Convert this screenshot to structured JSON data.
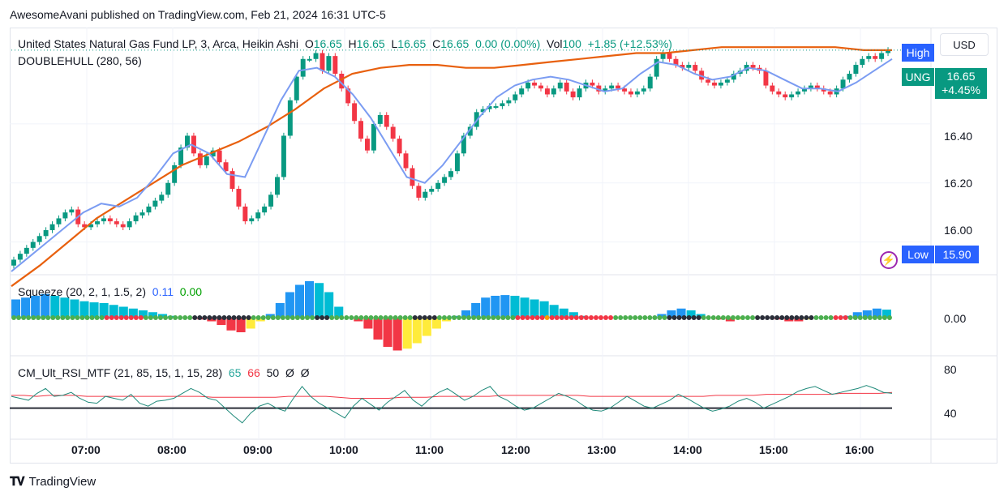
{
  "published_line": "AwesomeAvani published on TradingView.com, Feb 21, 2024 16:31 UTC-5",
  "legend": {
    "symbol": "United States Natural Gas Fund LP, 3, Arca, Heikin Ashi",
    "o_label": "O",
    "o_value": "16.65",
    "h_label": "H",
    "h_value": "16.65",
    "l_label": "L",
    "l_value": "16.65",
    "c_label": "C",
    "c_value": "16.65",
    "change": "0.00 (0.00%)",
    "vol_label": "Vol",
    "vol_value": "100",
    "day_change": "+1.85 (+12.53%)",
    "indicator": "DOUBLEHULL (280, 56)"
  },
  "currency_button": "USD",
  "price_tags": {
    "high_label": "High",
    "ticker": "UNG",
    "last_price": "16.65",
    "last_change": "+4.45%",
    "low_label": "Low",
    "low_price": "15.90"
  },
  "squeeze_legend": {
    "name": "Squeeze (20, 2, 1, 1.5, 2)",
    "v1": "0.11",
    "v2": "0.00",
    "axis_label": "0.00"
  },
  "rsi_legend": {
    "name": "CM_Ult_RSI_MTF (21, 85, 15, 1, 15, 28)",
    "v1": "65",
    "v2": "66",
    "v3": "50",
    "v4": "Ø",
    "v5": "Ø",
    "axis_top": "80",
    "axis_bottom": "40"
  },
  "price_axis": [
    "16.40",
    "16.20",
    "16.00"
  ],
  "time_axis": [
    "07:00",
    "08:00",
    "09:00",
    "10:00",
    "11:00",
    "12:00",
    "13:00",
    "14:00",
    "15:00",
    "16:00"
  ],
  "footer_brand": "TradingView",
  "colors": {
    "up": "#089981",
    "down": "#f23645",
    "hull_fast": "#7b9cf2",
    "hull_slow": "#e8600e",
    "tag_blue": "#2962ff",
    "tag_green": "#089981",
    "squeeze_blue": "#2196f3",
    "squeeze_cyan": "#00bcd4",
    "squeeze_red": "#f23645",
    "squeeze_yellow": "#ffeb3b",
    "rsi_line": "#1f8a7a",
    "rsi_signal": "#f23645"
  },
  "chart_data": {
    "type": "candlestick",
    "title": "United States Natural Gas Fund LP, 3, Arca, Heikin Ashi",
    "x_range": [
      "06:30",
      "16:20"
    ],
    "ylim": [
      15.9,
      16.71
    ],
    "price_ticks": [
      16.0,
      16.2,
      16.4
    ],
    "close_series": [
      15.94,
      15.96,
      15.98,
      16.0,
      16.02,
      16.04,
      16.06,
      16.08,
      16.1,
      16.11,
      16.06,
      16.05,
      16.06,
      16.07,
      16.08,
      16.07,
      16.06,
      16.05,
      16.07,
      16.09,
      16.1,
      16.12,
      16.14,
      16.16,
      16.2,
      16.26,
      16.32,
      16.36,
      16.3,
      16.26,
      16.29,
      16.31,
      16.27,
      16.24,
      16.18,
      16.12,
      16.07,
      16.08,
      16.1,
      16.12,
      16.16,
      16.22,
      16.36,
      16.48,
      16.56,
      16.62,
      16.62,
      16.64,
      16.58,
      16.63,
      16.57,
      16.52,
      16.47,
      16.41,
      16.35,
      16.31,
      16.4,
      16.43,
      16.39,
      16.35,
      16.3,
      16.25,
      16.19,
      16.15,
      16.17,
      16.18,
      16.2,
      16.22,
      16.24,
      16.3,
      16.36,
      16.39,
      16.44,
      16.45,
      16.46,
      16.46,
      16.47,
      16.48,
      16.5,
      16.52,
      16.54,
      16.53,
      16.52,
      16.5,
      16.52,
      16.54,
      16.51,
      16.49,
      16.52,
      16.54,
      16.53,
      16.51,
      16.52,
      16.53,
      16.52,
      16.51,
      16.5,
      16.51,
      16.52,
      16.56,
      16.62,
      16.64,
      16.62,
      16.6,
      16.59,
      16.6,
      16.58,
      16.55,
      16.54,
      16.53,
      16.54,
      16.55,
      16.57,
      16.58,
      16.6,
      16.59,
      16.58,
      16.53,
      16.51,
      16.5,
      16.49,
      16.5,
      16.51,
      16.52,
      16.53,
      16.52,
      16.51,
      16.5,
      16.52,
      16.55,
      16.57,
      16.6,
      16.62,
      16.63,
      16.62,
      16.64,
      16.65
    ],
    "hull_fast_values": [
      15.9,
      15.95,
      16.0,
      16.05,
      16.1,
      16.13,
      16.12,
      16.15,
      16.22,
      16.3,
      16.33,
      16.3,
      16.23,
      16.22,
      16.35,
      16.48,
      16.58,
      16.59,
      16.56,
      16.5,
      16.42,
      16.32,
      16.22,
      16.2,
      16.26,
      16.34,
      16.42,
      16.49,
      16.53,
      16.55,
      16.56,
      16.55,
      16.53,
      16.51,
      16.52,
      16.57,
      16.61,
      16.6,
      16.57,
      16.55,
      16.56,
      16.59,
      16.58,
      16.55,
      16.52,
      16.52,
      16.51,
      16.54,
      16.58,
      16.62
    ],
    "hull_slow_values": [
      15.85,
      15.92,
      16.0,
      16.08,
      16.14,
      16.2,
      16.26,
      16.3,
      16.34,
      16.39,
      16.45,
      16.52,
      16.57,
      16.59,
      16.6,
      16.6,
      16.59,
      16.59,
      16.6,
      16.61,
      16.62,
      16.63,
      16.64,
      16.64,
      16.65,
      16.66,
      16.66,
      16.66,
      16.66,
      16.66,
      16.65,
      16.65
    ],
    "squeeze": {
      "axis": "0.00",
      "momentum": [
        0.5,
        0.55,
        0.6,
        0.65,
        0.6,
        0.55,
        0.5,
        0.45,
        0.42,
        0.4,
        0.35,
        0.3,
        0.25,
        0.2,
        0.15,
        0.1,
        0.05,
        0.0,
        -0.02,
        -0.05,
        -0.1,
        -0.2,
        -0.35,
        -0.4,
        -0.3,
        -0.1,
        0.1,
        0.4,
        0.7,
        0.9,
        1.0,
        0.95,
        0.7,
        0.3,
        0.0,
        -0.1,
        -0.3,
        -0.6,
        -0.8,
        -0.9,
        -0.85,
        -0.7,
        -0.5,
        -0.3,
        -0.1,
        0.05,
        0.2,
        0.4,
        0.55,
        0.6,
        0.62,
        0.6,
        0.55,
        0.5,
        0.45,
        0.35,
        0.25,
        0.15,
        0.05,
        0.0,
        0.0,
        0.0,
        0.0,
        0.0,
        0.0,
        0.0,
        0.1,
        0.2,
        0.25,
        0.2,
        0.1,
        0.0,
        -0.05,
        -0.1,
        -0.05,
        0.0,
        0.0,
        0.0,
        -0.05,
        -0.1,
        -0.1,
        -0.05,
        0.0,
        0.0,
        0.0,
        0.05,
        0.15,
        0.2,
        0.25,
        0.22
      ]
    },
    "rsi": {
      "ylim": [
        20,
        100
      ],
      "ticks": [
        80,
        40
      ],
      "midline": 50,
      "values": [
        62,
        60,
        58,
        65,
        70,
        62,
        63,
        66,
        60,
        56,
        55,
        62,
        60,
        58,
        64,
        55,
        52,
        57,
        58,
        60,
        65,
        70,
        66,
        60,
        58,
        50,
        42,
        35,
        45,
        52,
        55,
        50,
        47,
        60,
        72,
        62,
        55,
        50,
        45,
        40,
        52,
        60,
        54,
        48,
        56,
        62,
        68,
        58,
        52,
        60,
        66,
        70,
        64,
        58,
        62,
        68,
        72,
        62,
        58,
        52,
        48,
        50,
        55,
        60,
        65,
        62,
        58,
        52,
        48,
        47,
        50,
        56,
        62,
        57,
        52,
        50,
        54,
        58,
        64,
        60,
        55,
        50,
        47,
        49,
        52,
        57,
        60,
        56,
        50,
        54,
        58,
        62,
        67,
        70,
        72,
        68,
        64,
        66,
        68,
        70,
        73,
        70,
        66,
        65
      ],
      "signal": [
        63,
        63,
        62,
        63,
        63,
        63,
        62,
        62,
        62,
        62,
        62,
        62,
        62,
        62,
        62,
        62,
        61,
        61,
        61,
        61,
        61,
        61,
        62,
        62,
        62,
        62,
        61,
        60,
        60,
        60,
        60,
        61,
        61,
        61,
        62,
        62,
        62,
        62,
        62,
        63,
        63,
        63,
        63,
        63,
        63,
        63,
        62,
        62,
        62,
        62,
        62,
        62,
        62,
        62,
        62,
        62,
        63,
        63,
        63,
        63,
        64,
        64,
        64,
        64,
        64,
        64,
        65,
        65,
        65,
        65,
        66
      ]
    }
  }
}
